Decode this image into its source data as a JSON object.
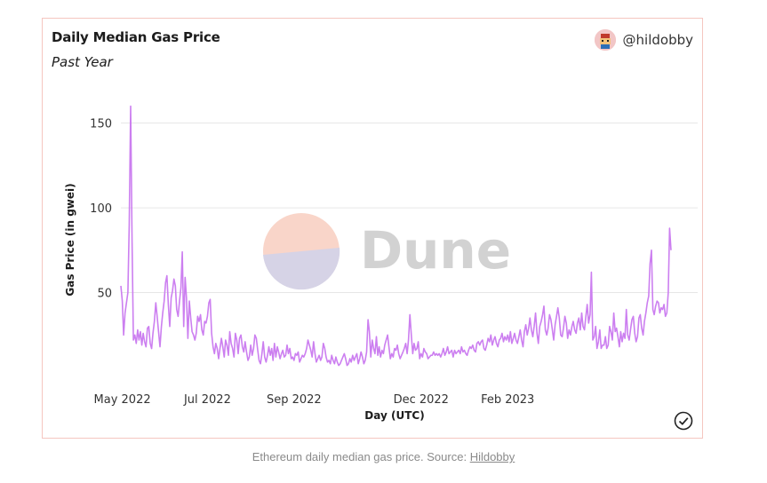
{
  "header": {
    "title": "Daily Median Gas Price",
    "subtitle": "Past Year",
    "author": "@hildobby"
  },
  "watermark": {
    "text": "Dune"
  },
  "caption": {
    "text": "Ethereum daily median gas price. Source: ",
    "link": "Hildobby"
  },
  "colors": {
    "line": "#cc7ff0",
    "grid": "#e6e6e6",
    "border": "#f5c6c0"
  },
  "chart_data": {
    "type": "line",
    "title": "Daily Median Gas Price",
    "subtitle": "Past Year",
    "xlabel": "Day (UTC)",
    "ylabel": "Gas Price (in gwei)",
    "ylim": [
      0,
      165
    ],
    "yticks": [
      50,
      100,
      150
    ],
    "grid": true,
    "series": [
      {
        "name": "Gas Price",
        "x_start": "2022-04-30",
        "step_days": 1,
        "values": [
          54,
          45,
          25,
          38,
          44,
          50,
          90,
          160,
          80,
          22,
          25,
          20,
          28,
          22,
          27,
          19,
          26,
          21,
          18,
          29,
          30,
          20,
          17,
          26,
          33,
          44,
          36,
          27,
          18,
          30,
          38,
          45,
          56,
          60,
          43,
          30,
          47,
          51,
          58,
          54,
          40,
          36,
          45,
          53,
          74,
          30,
          59,
          47,
          23,
          45,
          35,
          27,
          25,
          22,
          26,
          36,
          33,
          37,
          28,
          25,
          33,
          32,
          36,
          44,
          46,
          26,
          18,
          14,
          20,
          17,
          11,
          17,
          23,
          18,
          12,
          22,
          19,
          13,
          27,
          20,
          17,
          12,
          26,
          22,
          14,
          23,
          25,
          18,
          15,
          21,
          15,
          10,
          12,
          19,
          13,
          17,
          25,
          23,
          16,
          10,
          8,
          14,
          21,
          12,
          9,
          13,
          18,
          13,
          17,
          10,
          20,
          12,
          18,
          15,
          11,
          14,
          16,
          12,
          13,
          19,
          14,
          17,
          11,
          12,
          10,
          14,
          13,
          15,
          9,
          11,
          13,
          12,
          14,
          17,
          22,
          19,
          16,
          12,
          21,
          14,
          9,
          11,
          13,
          10,
          12,
          20,
          17,
          12,
          9,
          10,
          8,
          13,
          10,
          8,
          12,
          9,
          7,
          8,
          10,
          12,
          14,
          11,
          7,
          8,
          11,
          9,
          13,
          10,
          12,
          14,
          8,
          11,
          15,
          12,
          8,
          10,
          15,
          34,
          27,
          12,
          22,
          17,
          14,
          24,
          13,
          18,
          12,
          16,
          14,
          19,
          22,
          25,
          18,
          11,
          14,
          12,
          17,
          16,
          19,
          14,
          11,
          13,
          15,
          17,
          20,
          14,
          22,
          37,
          25,
          14,
          20,
          16,
          17,
          21,
          11,
          14,
          12,
          17,
          15,
          14,
          11,
          12,
          13,
          13,
          15,
          13,
          14,
          13,
          14,
          12,
          14,
          17,
          13,
          15,
          18,
          14,
          15,
          16,
          12,
          16,
          14,
          15,
          16,
          14,
          18,
          15,
          16,
          14,
          13,
          16,
          18,
          17,
          19,
          16,
          15,
          20,
          21,
          19,
          21,
          22,
          17,
          16,
          19,
          23,
          21,
          25,
          19,
          22,
          24,
          20,
          18,
          22,
          23,
          26,
          21,
          24,
          22,
          25,
          21,
          27,
          20,
          23,
          26,
          22,
          20,
          24,
          28,
          22,
          18,
          27,
          31,
          25,
          29,
          35,
          28,
          24,
          30,
          38,
          26,
          20,
          30,
          33,
          37,
          42,
          28,
          25,
          29,
          37,
          34,
          28,
          22,
          31,
          36,
          41,
          35,
          25,
          24,
          29,
          36,
          32,
          23,
          28,
          25,
          30,
          33,
          28,
          26,
          32,
          35,
          28,
          38,
          30,
          28,
          36,
          43,
          32,
          37,
          62,
          22,
          24,
          30,
          17,
          21,
          28,
          17,
          19,
          19,
          24,
          17,
          19,
          30,
          27,
          22,
          38,
          27,
          29,
          24,
          18,
          27,
          21,
          26,
          23,
          40,
          25,
          22,
          28,
          34,
          36,
          26,
          21,
          24,
          35,
          37,
          29,
          25,
          33,
          38,
          44,
          48,
          67,
          75,
          40,
          37,
          42,
          45,
          44,
          38,
          41,
          40,
          43,
          36,
          38,
          50,
          88,
          75
        ]
      }
    ],
    "xticks": [
      {
        "label": "May 2022",
        "date": "2022-05-01"
      },
      {
        "label": "Jul 2022",
        "date": "2022-07-01"
      },
      {
        "label": "Sep 2022",
        "date": "2022-09-01"
      },
      {
        "label": "Dec 2022",
        "date": "2022-12-01"
      },
      {
        "label": "Feb 2023",
        "date": "2023-02-01"
      }
    ]
  }
}
